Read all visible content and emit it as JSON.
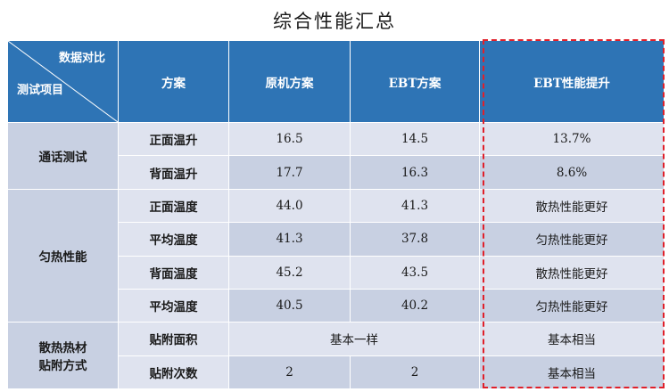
{
  "title": "综合性能汇总",
  "header": {
    "corner_top": "数据对比",
    "corner_bottom": "测试项目",
    "col_scheme": "方案",
    "col_original": "原机方案",
    "col_ebt": "EBT方案",
    "col_improve": "EBT性能提升"
  },
  "groups": [
    {
      "category": "通话测试",
      "rows": [
        {
          "scheme": "正面温升",
          "original": "16.5",
          "ebt": "14.5",
          "improve": "13.7%"
        },
        {
          "scheme": "背面温升",
          "original": "17.7",
          "ebt": "16.3",
          "improve": "8.6%"
        }
      ]
    },
    {
      "category": "匀热性能",
      "rows": [
        {
          "scheme": "正面温度",
          "original": "44.0",
          "ebt": "41.3",
          "improve": "散热性能更好"
        },
        {
          "scheme": "平均温度",
          "original": "41.3",
          "ebt": "37.8",
          "improve": "匀热性能更好"
        },
        {
          "scheme": "背面温度",
          "original": "45.2",
          "ebt": "43.5",
          "improve": "散热性能更好"
        },
        {
          "scheme": "平均温度",
          "original": "40.5",
          "ebt": "40.2",
          "improve": "匀热性能更好"
        }
      ]
    },
    {
      "category_line1": "散热热材",
      "category_line2": "贴附方式",
      "rows": [
        {
          "scheme": "贴附面积",
          "merged": "基本一样",
          "improve": "基本相当"
        },
        {
          "scheme": "贴附次数",
          "original": "2",
          "ebt": "2",
          "improve": "基本相当"
        }
      ]
    }
  ],
  "colors": {
    "header_blue": "#2e74b5",
    "row_light": "#dfe3ef",
    "row_dark": "#c8d0e2",
    "highlight_red": "#e0202a"
  }
}
